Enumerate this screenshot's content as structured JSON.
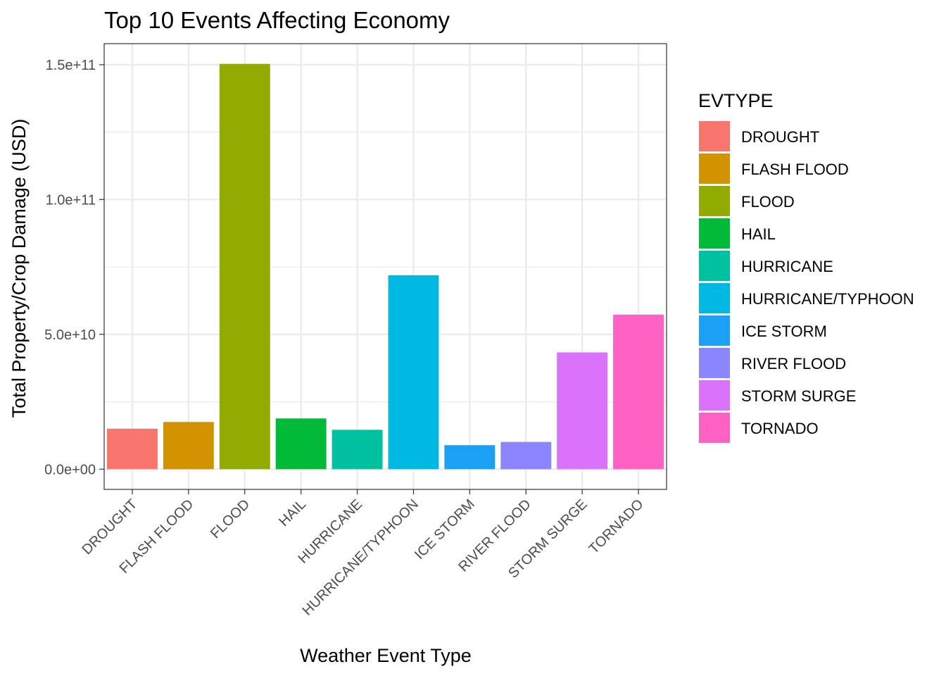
{
  "chart_data": {
    "type": "bar",
    "title": "Top 10 Events Affecting Economy",
    "xlabel": "Weather Event Type",
    "ylabel": "Total Property/Crop Damage (USD)",
    "categories": [
      "DROUGHT",
      "FLASH FLOOD",
      "FLOOD",
      "HAIL",
      "HURRICANE",
      "HURRICANE/TYPHOON",
      "ICE STORM",
      "RIVER FLOOD",
      "STORM SURGE",
      "TORNADO"
    ],
    "values": [
      15000000000,
      17500000000,
      150300000000,
      18800000000,
      14600000000,
      71900000000,
      8900000000,
      10100000000,
      43300000000,
      57300000000
    ],
    "colors": [
      "#F8766D",
      "#D39200",
      "#93AA00",
      "#00BA38",
      "#00C19F",
      "#00B9E3",
      "#1AA1F5",
      "#8B85FF",
      "#DB72FB",
      "#FF61C3"
    ],
    "ylim": [
      -7500000000,
      157800000000
    ],
    "yticks": [
      0,
      50000000000,
      100000000000,
      150000000000
    ],
    "ytick_labels": [
      "0.0e+00",
      "5.0e+10",
      "1.0e+11",
      "1.5e+11"
    ],
    "grid": true,
    "legend": {
      "title": "EVTYPE",
      "position": "right",
      "entries": [
        "DROUGHT",
        "FLASH FLOOD",
        "FLOOD",
        "HAIL",
        "HURRICANE",
        "HURRICANE/TYPHOON",
        "ICE STORM",
        "RIVER FLOOD",
        "STORM SURGE",
        "TORNADO"
      ]
    }
  }
}
